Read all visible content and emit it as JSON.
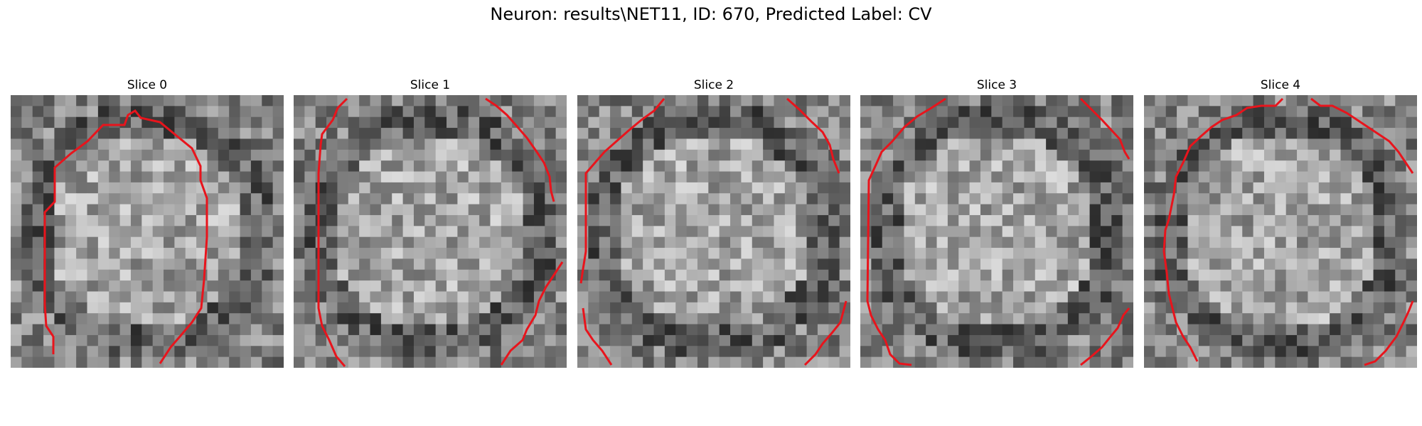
{
  "figure": {
    "title": "Neuron: results\\NET11, ID: 670, Predicted Label: CV",
    "contour_color": "#e8141c"
  },
  "panels": [
    {
      "title": "Slice 0"
    },
    {
      "title": "Slice 1"
    },
    {
      "title": "Slice 2"
    },
    {
      "title": "Slice 3"
    },
    {
      "title": "Slice 4"
    }
  ]
}
